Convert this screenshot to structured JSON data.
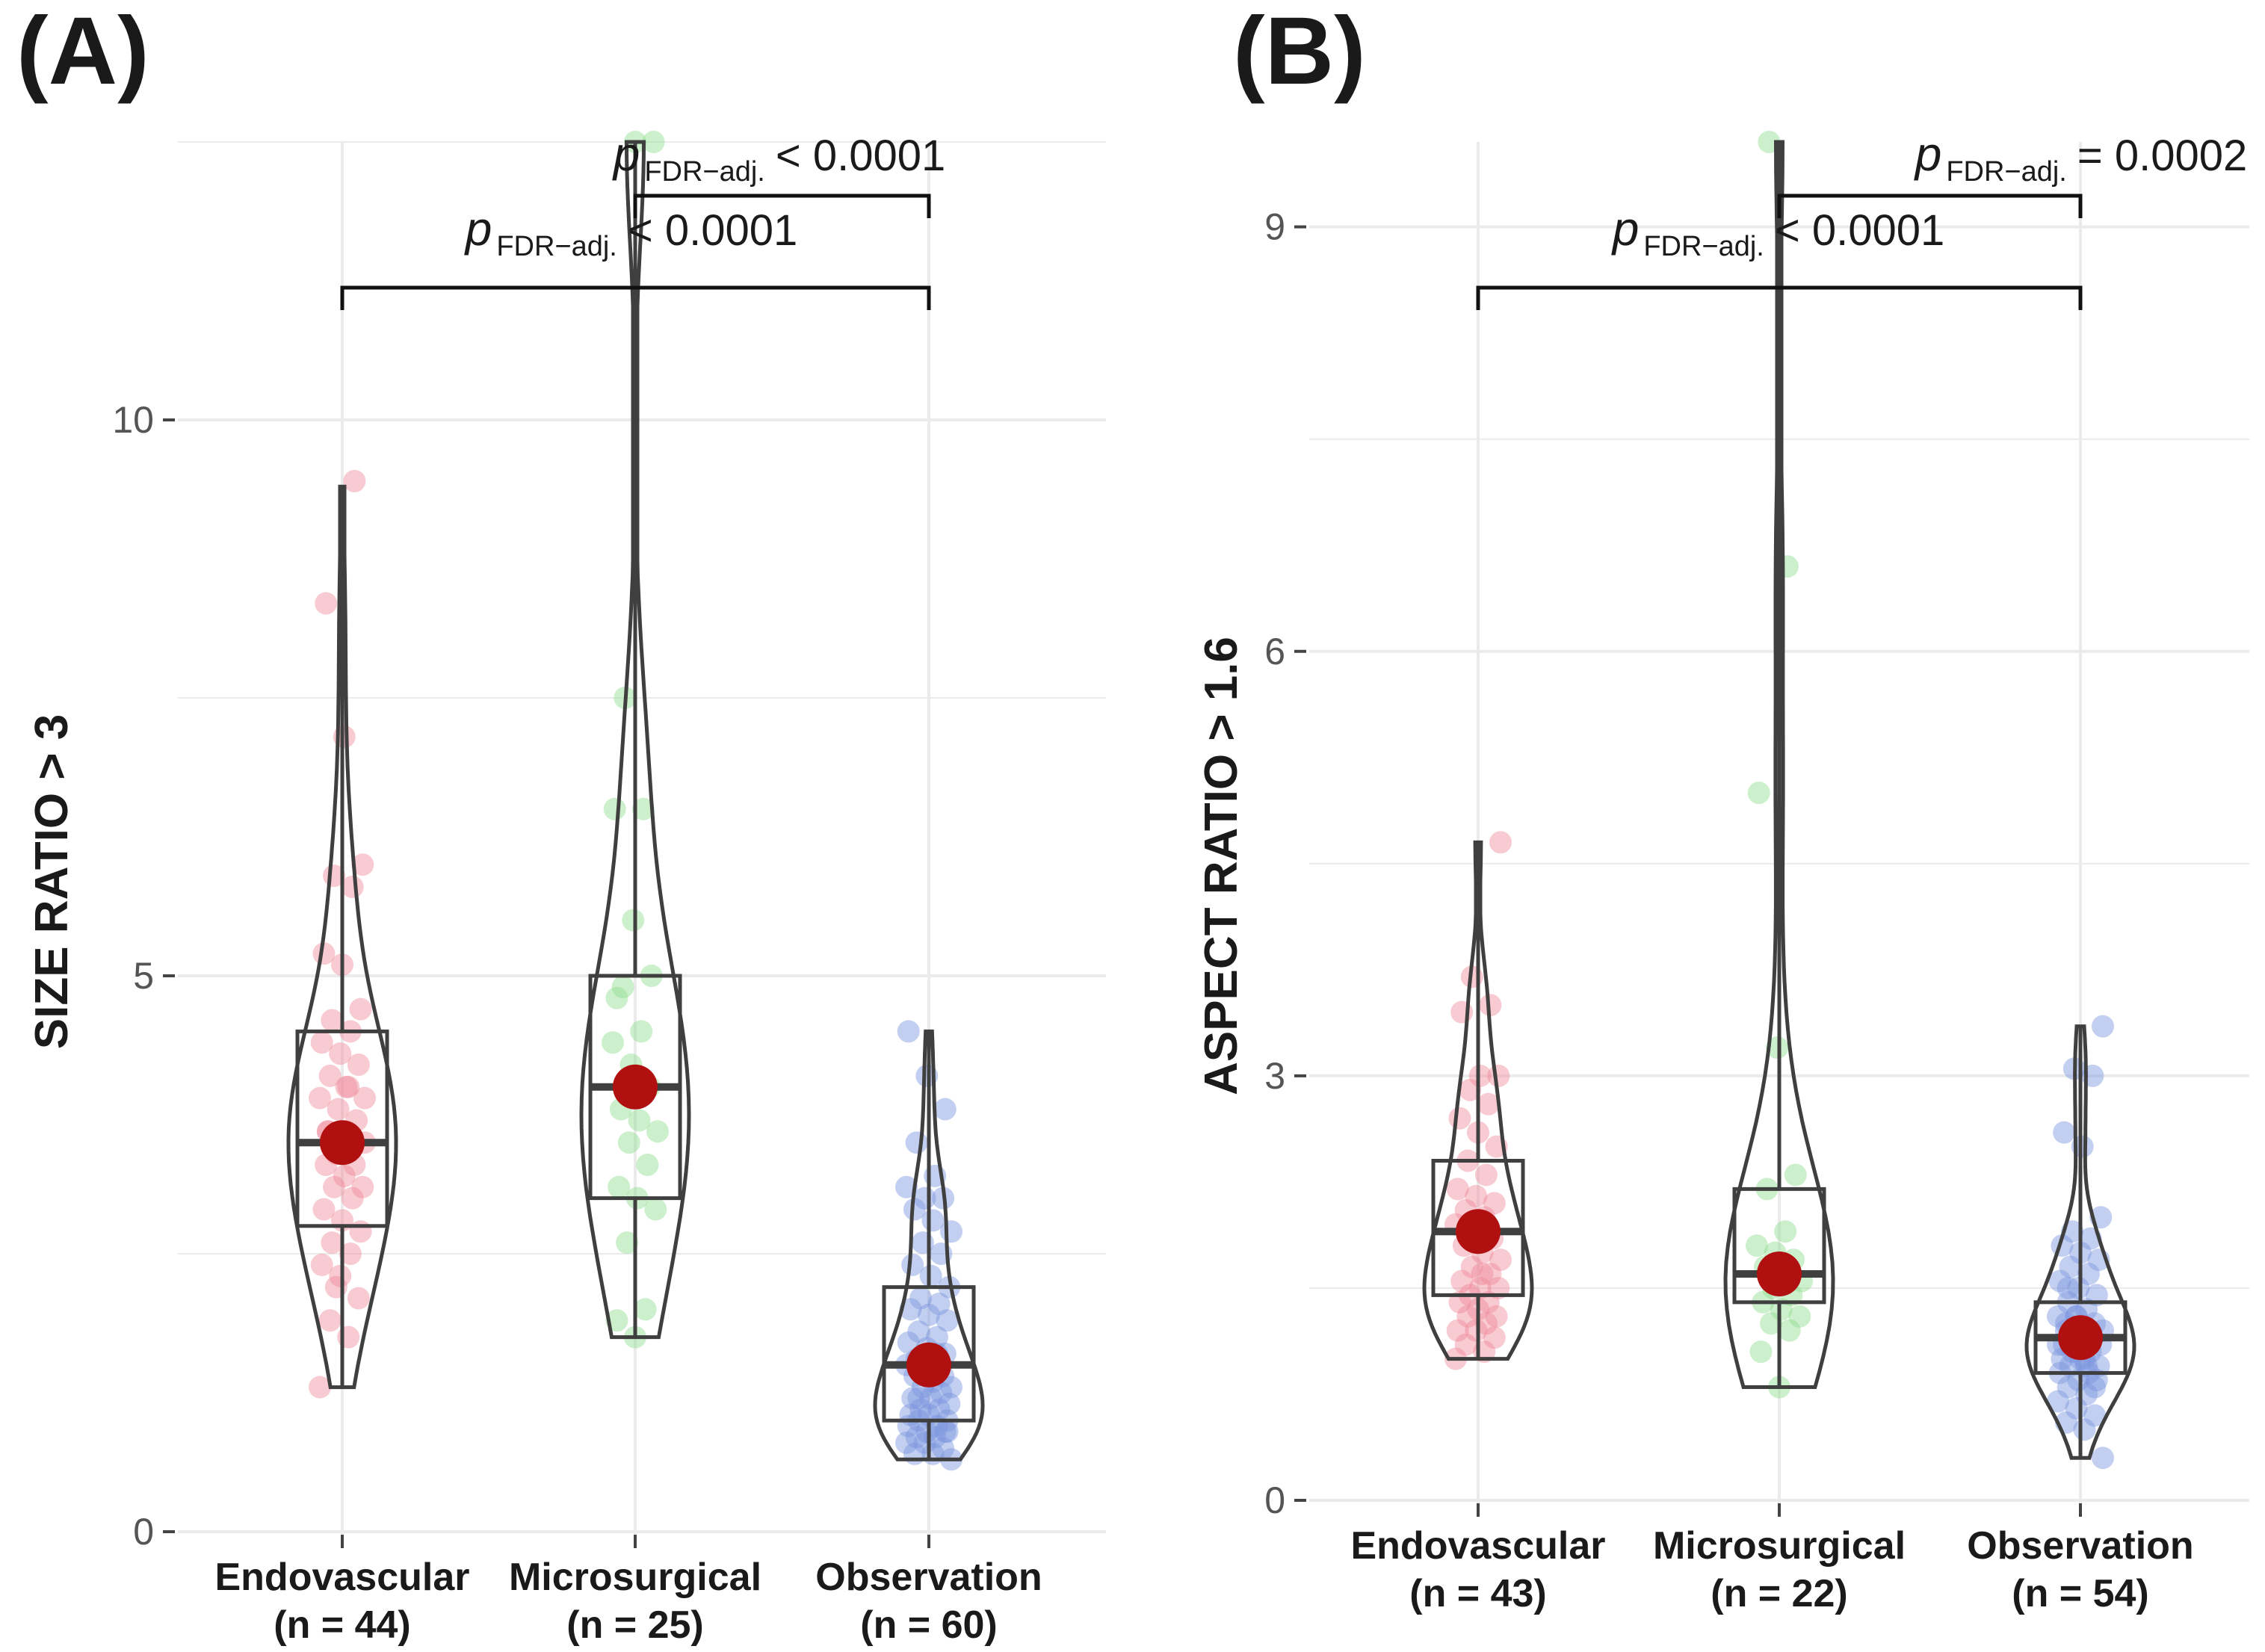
{
  "figure": {
    "colors": {
      "endovascular": "#f08a9a",
      "microsurgical": "#8fdc8f",
      "observation": "#7b95dd",
      "mean": "#b01010",
      "outline": "#3f3f3f",
      "grid": "#ebebeb"
    }
  },
  "chart_data": [
    {
      "panel": "(A)",
      "type": "violin",
      "ylabel": "SIZE RATIO > 3",
      "ylim": [
        0,
        12.5
      ],
      "yticks": [
        0,
        5,
        10
      ],
      "ytick_labels": [
        "0",
        "5",
        "10"
      ],
      "categories": [
        {
          "name": "Endovascular",
          "n_label": "(n = 44)",
          "color_key": "endovascular",
          "min": 1.3,
          "q1": 2.75,
          "median": 3.5,
          "q3": 4.5,
          "max": 9.4,
          "mean": 3.5,
          "points": [
            1.3,
            1.75,
            1.9,
            2.1,
            2.3,
            2.4,
            2.5,
            2.6,
            2.7,
            2.8,
            2.9,
            3.0,
            3.1,
            3.1,
            3.2,
            3.3,
            3.3,
            3.4,
            3.5,
            3.5,
            3.6,
            3.7,
            3.8,
            3.9,
            4.0,
            4.1,
            4.2,
            4.3,
            4.4,
            4.5,
            4.6,
            4.7,
            5.1,
            5.2,
            5.8,
            5.9,
            6.0,
            7.15,
            8.35,
            9.45,
            2.2,
            3.9,
            4.0,
            3.6
          ]
        },
        {
          "name": "Microsurgical",
          "n_label": "(n = 25)",
          "color_key": "microsurgical",
          "min": 1.75,
          "q1": 3.0,
          "median": 4.0,
          "q3": 5.0,
          "max": 12.5,
          "mean": 4.0,
          "points": [
            1.75,
            1.9,
            2.0,
            2.6,
            2.9,
            3.0,
            3.1,
            3.3,
            3.5,
            3.6,
            3.7,
            3.8,
            4.0,
            4.2,
            4.4,
            4.5,
            4.9,
            5.0,
            5.5,
            6.5,
            6.5,
            7.5,
            12.5,
            12.5,
            4.8
          ]
        },
        {
          "name": "Observation",
          "n_label": "(n = 60)",
          "color_key": "observation",
          "min": 0.65,
          "q1": 1.0,
          "median": 1.5,
          "q3": 2.2,
          "max": 4.5,
          "mean": 1.5,
          "points": [
            0.65,
            0.7,
            0.7,
            0.75,
            0.8,
            0.8,
            0.85,
            0.85,
            0.9,
            0.9,
            0.95,
            0.95,
            1.0,
            1.0,
            1.05,
            1.05,
            1.1,
            1.1,
            1.15,
            1.2,
            1.2,
            1.25,
            1.3,
            1.3,
            1.35,
            1.4,
            1.4,
            1.45,
            1.5,
            1.5,
            1.55,
            1.6,
            1.65,
            1.7,
            1.75,
            1.8,
            1.9,
            1.95,
            2.0,
            2.05,
            2.1,
            2.2,
            2.3,
            2.4,
            2.5,
            2.6,
            2.7,
            2.8,
            2.9,
            3.0,
            3.0,
            3.1,
            3.2,
            3.5,
            3.8,
            4.1,
            4.5,
            1.6,
            1.2,
            0.9
          ]
        }
      ],
      "annotations": [
        {
          "from": 1,
          "to": 2,
          "level": 1,
          "p": "p",
          "sub": "FDR−adj.",
          "text": "< 0.0001"
        },
        {
          "from": 0,
          "to": 2,
          "level": 0,
          "p": "p",
          "sub": "FDR−adj.",
          "text": "< 0.0001"
        }
      ]
    },
    {
      "panel": "(B)",
      "type": "violin",
      "ylabel": "ASPECT RATIO > 1.6",
      "ylim": [
        0,
        9.6
      ],
      "yticks": [
        0,
        3,
        6,
        9
      ],
      "ytick_labels": [
        "0",
        "3",
        "6",
        "9"
      ],
      "categories": [
        {
          "name": "Endovascular",
          "n_label": "(n = 43)",
          "color_key": "endovascular",
          "min": 1.0,
          "q1": 1.45,
          "median": 1.9,
          "q3": 2.4,
          "max": 4.65,
          "mean": 1.9,
          "points": [
            1.0,
            1.05,
            1.1,
            1.15,
            1.2,
            1.2,
            1.25,
            1.3,
            1.3,
            1.35,
            1.4,
            1.4,
            1.45,
            1.5,
            1.5,
            1.55,
            1.6,
            1.65,
            1.7,
            1.75,
            1.8,
            1.85,
            1.9,
            1.95,
            2.0,
            2.05,
            2.1,
            2.15,
            2.2,
            2.3,
            2.4,
            2.5,
            2.6,
            2.7,
            2.8,
            2.9,
            3.0,
            3.0,
            3.45,
            3.5,
            3.7,
            4.65,
            1.6
          ]
        },
        {
          "name": "Microsurgical",
          "n_label": "(n = 22)",
          "color_key": "microsurgical",
          "min": 0.8,
          "q1": 1.4,
          "median": 1.6,
          "q3": 2.2,
          "max": 9.6,
          "mean": 1.6,
          "points": [
            0.8,
            1.05,
            1.2,
            1.25,
            1.3,
            1.35,
            1.4,
            1.45,
            1.5,
            1.55,
            1.6,
            1.65,
            1.7,
            1.75,
            1.8,
            1.9,
            2.2,
            2.3,
            3.2,
            5.0,
            6.6,
            9.6
          ]
        },
        {
          "name": "Observation",
          "n_label": "(n = 54)",
          "color_key": "observation",
          "min": 0.3,
          "q1": 0.9,
          "median": 1.15,
          "q3": 1.4,
          "max": 3.35,
          "mean": 1.15,
          "points": [
            0.3,
            0.5,
            0.55,
            0.6,
            0.65,
            0.7,
            0.75,
            0.8,
            0.85,
            0.85,
            0.9,
            0.9,
            0.95,
            0.95,
            1.0,
            1.0,
            1.05,
            1.05,
            1.1,
            1.1,
            1.1,
            1.15,
            1.15,
            1.2,
            1.2,
            1.25,
            1.25,
            1.3,
            1.3,
            1.35,
            1.4,
            1.45,
            1.5,
            1.55,
            1.6,
            1.65,
            1.7,
            1.75,
            1.8,
            1.85,
            1.9,
            2.0,
            2.5,
            2.6,
            3.0,
            3.05,
            3.35,
            1.0,
            1.2,
            0.8,
            1.3,
            1.1,
            0.95,
            1.5
          ]
        }
      ],
      "annotations": [
        {
          "from": 1,
          "to": 2,
          "level": 1,
          "p": "p",
          "sub": "FDR−adj.",
          "text": "= 0.0002"
        },
        {
          "from": 0,
          "to": 2,
          "level": 0,
          "p": "p",
          "sub": "FDR−adj.",
          "text": "< 0.0001"
        }
      ]
    }
  ]
}
